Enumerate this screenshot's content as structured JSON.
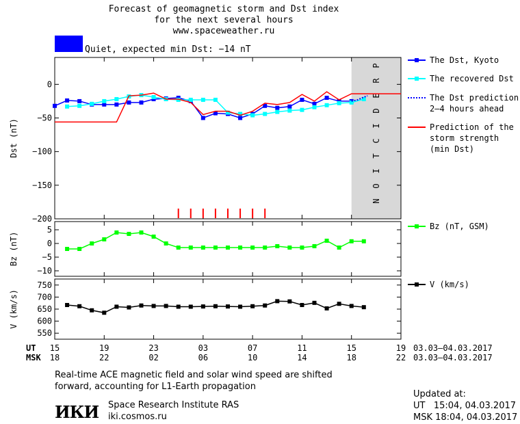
{
  "header": {
    "title_line1": "Forecast of geomagnetic storm and Dst index",
    "title_line2": "for the next several hours",
    "site": "www.spaceweather.ru",
    "status_color": "#0000ff",
    "status_text": "Quiet, expected min Dst: −14 nT"
  },
  "chart_data": [
    {
      "type": "line",
      "ylabel": "Dst (nT)",
      "ylim": [
        -200,
        40
      ],
      "yticks": [
        0,
        -50,
        -100,
        -150,
        -200
      ],
      "ytick_labels": [
        "0",
        "−50",
        "−100",
        "−150",
        "−200"
      ],
      "xlim": [
        15,
        43
      ],
      "prediction_band": {
        "from": 39,
        "to": 43,
        "label": "PREDICTION",
        "color": "#d8d8d8"
      },
      "series": [
        {
          "name": "The Dst, Kyoto",
          "color": "#0000ff",
          "marker": "square",
          "x": [
            15,
            16,
            17,
            18,
            19,
            20,
            21,
            22,
            23,
            24,
            25,
            26,
            27,
            28,
            29,
            30,
            31,
            32,
            33,
            34,
            35,
            36,
            37,
            38,
            39
          ],
          "y": [
            -32,
            -24,
            -25,
            -30,
            -30,
            -30,
            -27,
            -27,
            -22,
            -21,
            -20,
            -25,
            -50,
            -43,
            -44,
            -50,
            -44,
            -32,
            -35,
            -33,
            -23,
            -29,
            -20,
            -25,
            -25
          ]
        },
        {
          "name": "The recovered Dst",
          "color": "#00ffff",
          "marker": "square",
          "x": [
            16,
            17,
            18,
            19,
            20,
            21,
            22,
            23,
            24,
            25,
            26,
            27,
            28,
            29,
            30,
            31,
            32,
            33,
            34,
            35,
            36,
            37,
            38,
            39,
            40
          ],
          "y": [
            -33,
            -32,
            -29,
            -25,
            -22,
            -18,
            -16,
            -19,
            -22,
            -23,
            -23,
            -23,
            -23,
            -42,
            -44,
            -46,
            -44,
            -41,
            -39,
            -38,
            -34,
            -31,
            -28,
            -27,
            -22
          ]
        },
        {
          "name": "The Dst prediction\n2–4 hours ahead",
          "color": "#0000ff",
          "dashed": true,
          "x": [
            39,
            39.5,
            40,
            40.3
          ],
          "y": [
            -25,
            -23,
            -19,
            -17
          ]
        },
        {
          "name": "Prediction of the\nstorm strength\n(min Dst)",
          "color": "#ff0000",
          "x": [
            15,
            20,
            21,
            22,
            23,
            24,
            25,
            26,
            27,
            28,
            29,
            30,
            31,
            32,
            33,
            34,
            35,
            36,
            37,
            38,
            39,
            40,
            43
          ],
          "y": [
            -56,
            -56,
            -17,
            -16,
            -13,
            -22,
            -22,
            -27,
            -45,
            -40,
            -40,
            -46,
            -40,
            -28,
            -30,
            -27,
            -15,
            -25,
            -11,
            -23,
            -14,
            -14,
            -14
          ]
        }
      ],
      "storm_markers": {
        "color": "#ff0000",
        "x": [
          25,
          26,
          27,
          28,
          29,
          30,
          31,
          32
        ]
      }
    },
    {
      "type": "line",
      "ylabel": "Bz (nT)",
      "ylim": [
        -12,
        8
      ],
      "yticks": [
        5,
        0,
        -5,
        -10
      ],
      "ytick_labels": [
        "5",
        "0",
        "−5",
        "−10"
      ],
      "xlim": [
        15,
        43
      ],
      "series": [
        {
          "name": "Bz (nT, GSM)",
          "color": "#00ff00",
          "marker": "square",
          "x": [
            16,
            17,
            18,
            19,
            20,
            21,
            22,
            23,
            24,
            25,
            26,
            27,
            28,
            29,
            30,
            31,
            32,
            33,
            34,
            35,
            36,
            37,
            38,
            39,
            40
          ],
          "y": [
            -2,
            -2,
            0,
            1.5,
            4,
            3.5,
            4,
            2.5,
            0,
            -1.5,
            -1.5,
            -1.5,
            -1.5,
            -1.5,
            -1.5,
            -1.5,
            -1.5,
            -1,
            -1.5,
            -1.5,
            -1,
            1,
            -1.5,
            0.8,
            0.8
          ]
        }
      ]
    },
    {
      "type": "line",
      "ylabel": "V (km/s)",
      "ylim": [
        525,
        775
      ],
      "yticks": [
        750,
        700,
        650,
        600,
        550
      ],
      "ytick_labels": [
        "750",
        "700",
        "650",
        "600",
        "550"
      ],
      "xlim": [
        15,
        43
      ],
      "series": [
        {
          "name": "V (km/s)",
          "color": "#000000",
          "marker": "square",
          "x": [
            16,
            17,
            18,
            19,
            20,
            21,
            22,
            23,
            24,
            25,
            26,
            27,
            28,
            29,
            30,
            31,
            32,
            33,
            34,
            35,
            36,
            37,
            38,
            39,
            40
          ],
          "y": [
            667,
            662,
            645,
            635,
            660,
            657,
            665,
            663,
            663,
            660,
            660,
            661,
            662,
            661,
            660,
            662,
            665,
            683,
            682,
            667,
            676,
            653,
            672,
            663,
            658
          ]
        }
      ]
    }
  ],
  "time_axis": {
    "ut_label": "UT",
    "msk_label": "MSK",
    "ticks_at": [
      15,
      19,
      23,
      27,
      31,
      35,
      39,
      43
    ],
    "ut_ticks": [
      "15",
      "19",
      "23",
      "03",
      "07",
      "11",
      "15",
      "19"
    ],
    "msk_ticks": [
      "18",
      "22",
      "02",
      "06",
      "10",
      "14",
      "18",
      "22"
    ],
    "ut_range": "03.03–04.03.2017",
    "msk_range": "03.03–04.03.2017"
  },
  "footer": {
    "note_line1": "Real-time ACE magnetic field and solar wind speed are shifted",
    "note_line2": "forward, accounting for L1-Earth propagation",
    "logo_text": "ИКИ",
    "institute": "Space Research Institute RAS",
    "institute_url": "iki.cosmos.ru",
    "updated_label": "Updated at:",
    "updated_ut": "UT   15:04, 04.03.2017",
    "updated_msk": "MSK 18:04, 04.03.2017"
  }
}
